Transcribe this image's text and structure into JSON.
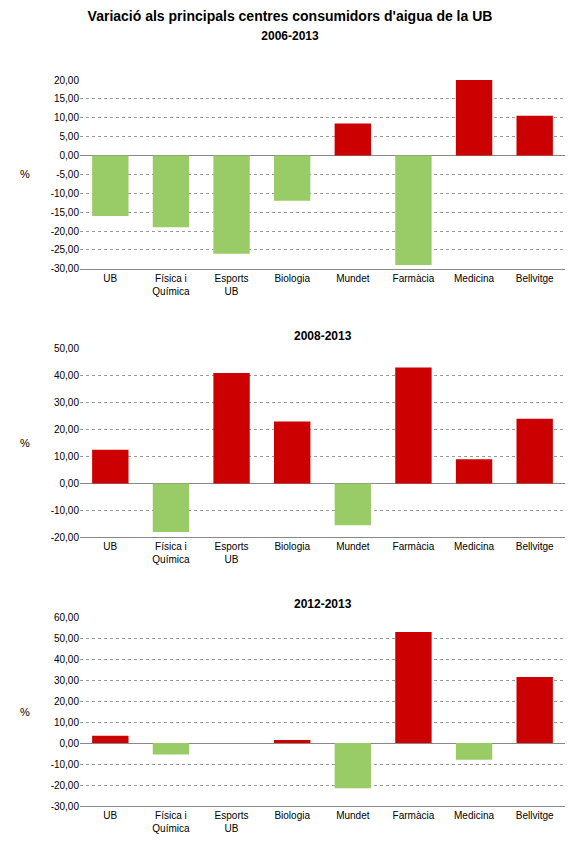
{
  "chart_data": [
    {
      "type": "bar",
      "title": "Variació als principals centres consumidors d'aigua de la UB",
      "subtitle": "2006-2013",
      "categories": [
        "UB",
        "Física i\nQuímica",
        "Esports\nUB",
        "Biologia",
        "Mundet",
        "Farmàcia",
        "Medicina",
        "Bellvitge"
      ],
      "values": [
        -16.0,
        -19.0,
        -26.0,
        -12.0,
        8.5,
        -29.0,
        20.0,
        10.5
      ],
      "colors": [
        "#99CC66",
        "#99CC66",
        "#99CC66",
        "#99CC66",
        "#CC0000",
        "#99CC66",
        "#CC0000",
        "#CC0000"
      ],
      "y_label": "%",
      "ylim": [
        -30,
        20
      ],
      "yticks": [
        {
          "value": -30,
          "label": "-30,00"
        },
        {
          "value": -25,
          "label": "-25,00"
        },
        {
          "value": -20,
          "label": "-20,00"
        },
        {
          "value": -15,
          "label": "-15,00"
        },
        {
          "value": -10,
          "label": "-10,00"
        },
        {
          "value": -5,
          "label": "-5,00"
        },
        {
          "value": 0,
          "label": "0,00"
        },
        {
          "value": 5,
          "label": "5,00"
        },
        {
          "value": 10,
          "label": "10,00"
        },
        {
          "value": 15,
          "label": "15,00"
        },
        {
          "value": 20,
          "label": "20,00"
        }
      ],
      "grid": true
    },
    {
      "type": "bar",
      "subtitle": "2008-2013",
      "categories": [
        "UB",
        "Física i\nQuímica",
        "Esports\nUB",
        "Biologia",
        "Mundet",
        "Farmàcia",
        "Medicina",
        "Bellvitge"
      ],
      "values": [
        12.5,
        -18.0,
        41.0,
        23.0,
        -15.5,
        43.0,
        9.0,
        24.0
      ],
      "colors": [
        "#CC0000",
        "#99CC66",
        "#CC0000",
        "#CC0000",
        "#99CC66",
        "#CC0000",
        "#CC0000",
        "#CC0000"
      ],
      "y_label": "%",
      "ylim": [
        -20,
        50
      ],
      "yticks": [
        {
          "value": -20,
          "label": "-20,00"
        },
        {
          "value": -10,
          "label": "-10,00"
        },
        {
          "value": 0,
          "label": "0,00"
        },
        {
          "value": 10,
          "label": "10,00"
        },
        {
          "value": 20,
          "label": "20,00"
        },
        {
          "value": 30,
          "label": "30,00"
        },
        {
          "value": 40,
          "label": "40,00"
        },
        {
          "value": 50,
          "label": "50,00"
        }
      ],
      "grid": true
    },
    {
      "type": "bar",
      "subtitle": "2012-2013",
      "categories": [
        "UB",
        "Física i\nQuímica",
        "Esports\nUB",
        "Biologia",
        "Mundet",
        "Farmàcia",
        "Medicina",
        "Bellvitge"
      ],
      "values": [
        3.5,
        -5.5,
        0.0,
        1.5,
        -21.5,
        53.0,
        -8.0,
        31.5
      ],
      "colors": [
        "#CC0000",
        "#99CC66",
        "#CC0000",
        "#CC0000",
        "#99CC66",
        "#CC0000",
        "#99CC66",
        "#CC0000"
      ],
      "y_label": "%",
      "ylim": [
        -30,
        60
      ],
      "yticks": [
        {
          "value": -30,
          "label": "-30,00"
        },
        {
          "value": -20,
          "label": "-20,00"
        },
        {
          "value": -10,
          "label": "-10,00"
        },
        {
          "value": 0,
          "label": "0,00"
        },
        {
          "value": 10,
          "label": "10,00"
        },
        {
          "value": 20,
          "label": "20,00"
        },
        {
          "value": 30,
          "label": "30,00"
        },
        {
          "value": 40,
          "label": "40,00"
        },
        {
          "value": 50,
          "label": "50,00"
        },
        {
          "value": 60,
          "label": "60,00"
        }
      ],
      "grid": true
    }
  ]
}
